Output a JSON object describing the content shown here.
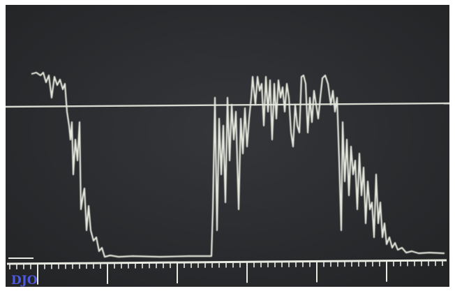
{
  "screen": {
    "label": "DJO"
  }
}
